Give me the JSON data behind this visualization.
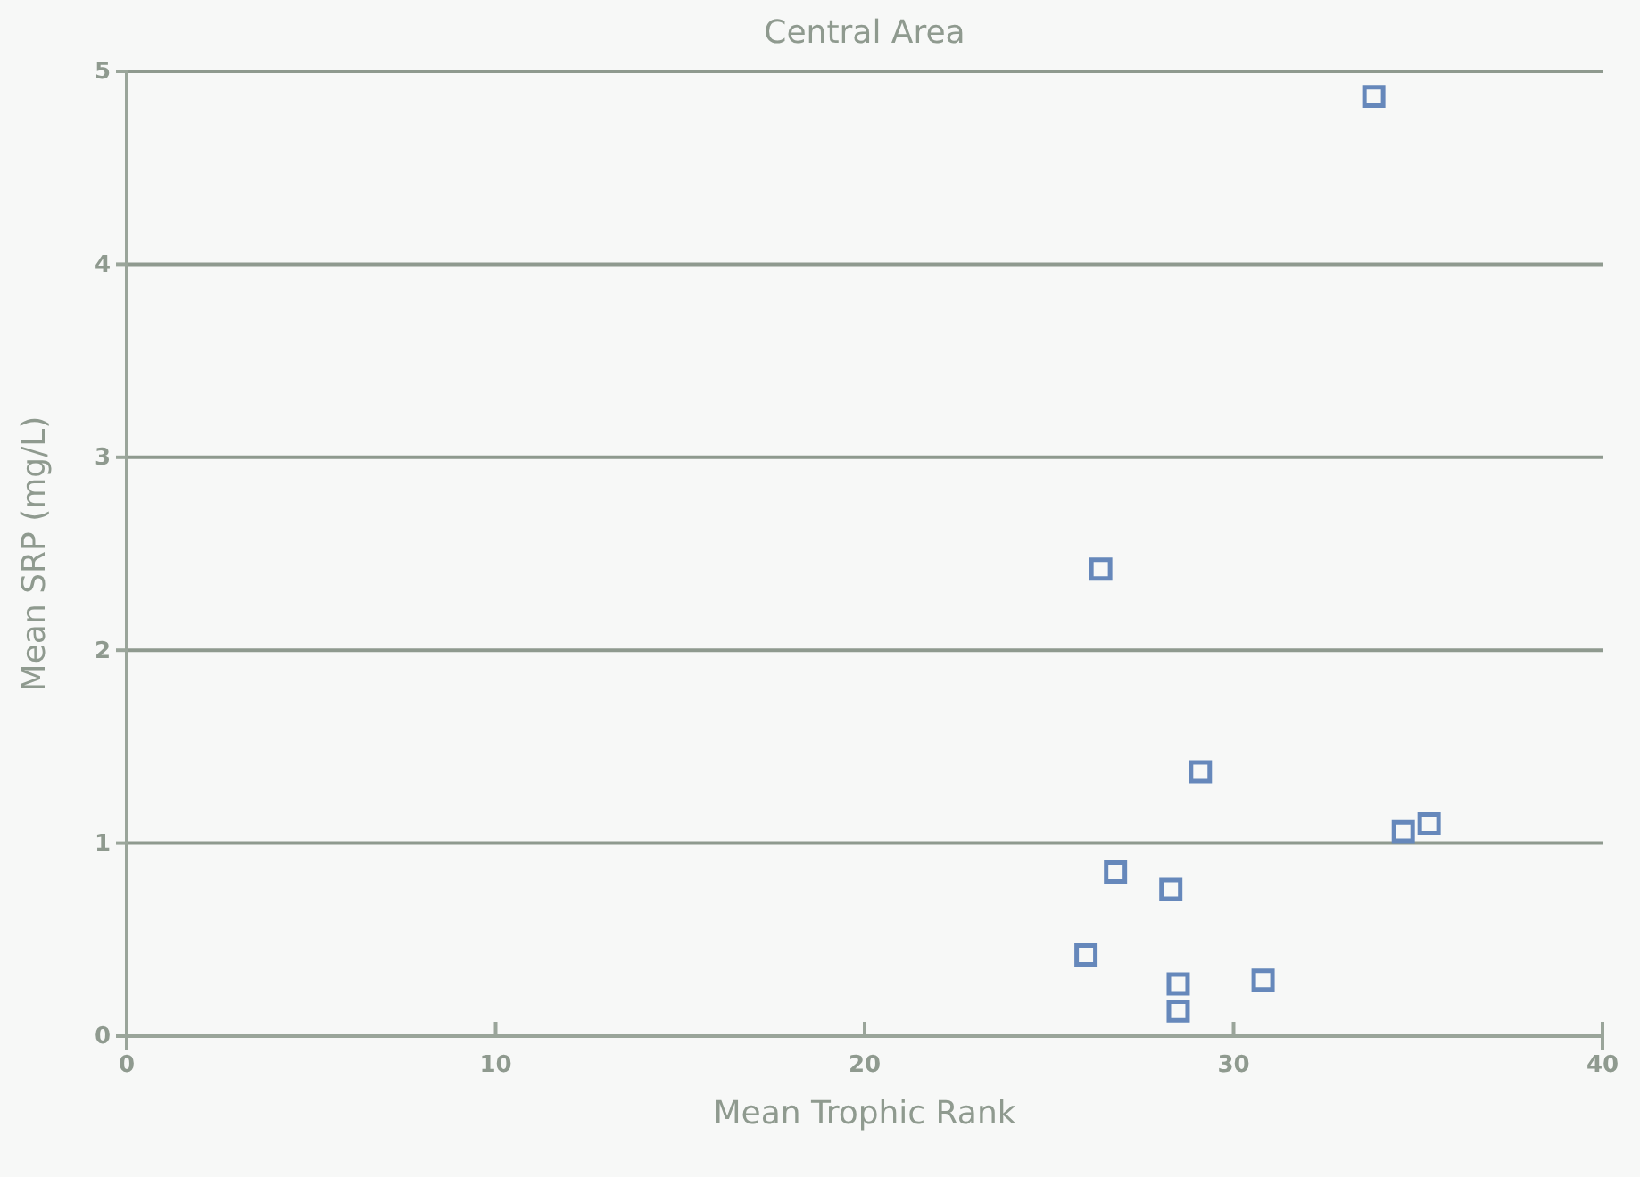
{
  "chart_data": {
    "type": "scatter",
    "title": "Central Area",
    "xlabel": "Mean Trophic Rank",
    "ylabel": "Mean SRP (mg/L)",
    "x": [
      33.8,
      26.4,
      29.1,
      34.6,
      35.3,
      26.8,
      28.3,
      26.0,
      28.5,
      28.5,
      30.8
    ],
    "series": [
      {
        "color": "#6688bb",
        "values": [
          4.87,
          2.42,
          1.37,
          1.06,
          1.1,
          0.85,
          0.76,
          0.42,
          0.27,
          0.13,
          0.29
        ]
      }
    ],
    "xlim": [
      0,
      40
    ],
    "xticks": [
      0,
      10,
      20,
      30,
      40
    ],
    "ylim": [
      0,
      5
    ],
    "yticks": [
      0,
      1,
      2,
      3,
      4,
      5
    ],
    "grid": "y",
    "marker": "square"
  }
}
